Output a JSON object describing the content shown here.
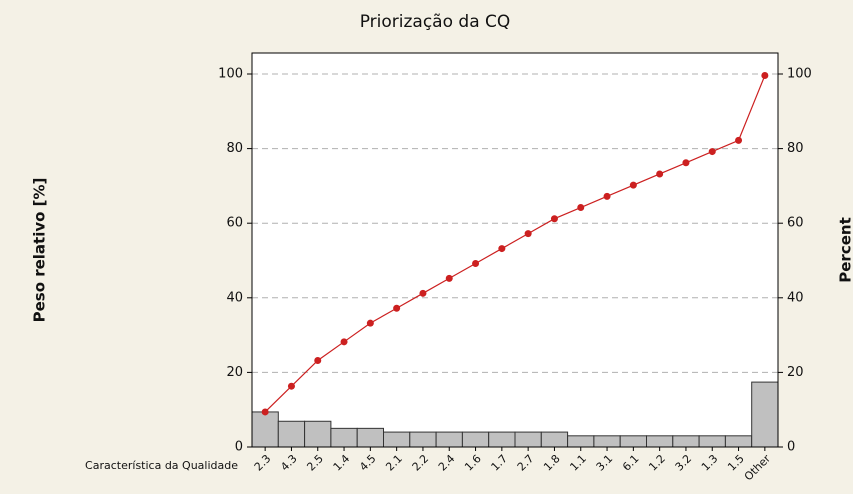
{
  "chart_data": {
    "type": "pareto",
    "title": "Priorização da CQ",
    "ylabel": "Peso relativo [%]",
    "y2label": "Percent",
    "xlabel": "Característica da Qualidade",
    "categories": [
      "2.3",
      "4.3",
      "2.5",
      "1.4",
      "4.5",
      "2.1",
      "2.2",
      "2.4",
      "1.6",
      "1.7",
      "2.7",
      "1.8",
      "1.1",
      "3.1",
      "6.1",
      "1.2",
      "3.2",
      "1.3",
      "1.5",
      "Other"
    ],
    "values": [
      9.4,
      6.9,
      6.9,
      5.0,
      5.0,
      4.0,
      4.0,
      4.0,
      4.0,
      4.0,
      4.0,
      4.0,
      3.0,
      3.0,
      3.0,
      3.0,
      3.0,
      3.0,
      3.0,
      17.4
    ],
    "color": "#c0c0c0",
    "line_color": "#cc2020",
    "ylim": [
      0,
      100
    ],
    "yticks": [
      0,
      20,
      40,
      60,
      80,
      100
    ],
    "y2lim": [
      0,
      100
    ],
    "y2ticks": [
      0,
      20,
      40,
      60,
      80,
      100
    ],
    "grid": true
  }
}
